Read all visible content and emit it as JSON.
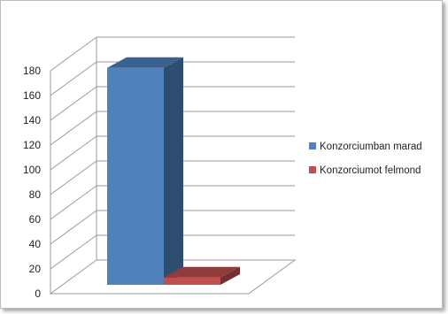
{
  "chart_data": {
    "type": "bar",
    "style": "3d-column",
    "categories": [
      ""
    ],
    "series": [
      {
        "name": "Konzorciumban marad",
        "values": [
          178
        ],
        "color": "#4F81BD"
      },
      {
        "name": "Konzorciumot felmond",
        "values": [
          6
        ],
        "color": "#C0504D"
      }
    ],
    "ylim": [
      0,
      180
    ],
    "yticks": [
      "0",
      "20",
      "40",
      "60",
      "80",
      "100",
      "120",
      "140",
      "160",
      "180"
    ],
    "grid": true,
    "legend": "right"
  }
}
